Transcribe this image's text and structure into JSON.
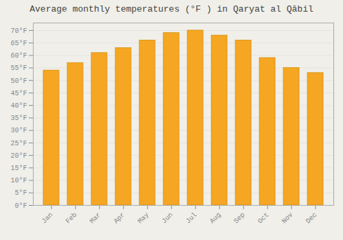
{
  "chart_data": {
    "type": "bar",
    "title": "Average monthly temperatures (°F ) in Qaryat al Qābil",
    "categories": [
      "Jan",
      "Feb",
      "Mar",
      "Apr",
      "May",
      "Jun",
      "Jul",
      "Aug",
      "Sep",
      "Oct",
      "Nov",
      "Dec"
    ],
    "values": [
      54,
      57,
      61,
      63,
      66,
      69,
      70,
      68,
      66,
      59,
      55,
      53
    ],
    "color": "#F5A623",
    "ylim": [
      0,
      73
    ],
    "yticks": [
      {
        "value": 0,
        "label": "0°F"
      },
      {
        "value": 5,
        "label": "5°F"
      },
      {
        "value": 10,
        "label": "10°F"
      },
      {
        "value": 15,
        "label": "15°F"
      },
      {
        "value": 20,
        "label": "20°F"
      },
      {
        "value": 25,
        "label": "25°F"
      },
      {
        "value": 30,
        "label": "30°F"
      },
      {
        "value": 35,
        "label": "35°F"
      },
      {
        "value": 40,
        "label": "40°F"
      },
      {
        "value": 45,
        "label": "45°F"
      },
      {
        "value": 50,
        "label": "50°F"
      },
      {
        "value": 55,
        "label": "55°F"
      },
      {
        "value": 60,
        "label": "60°F"
      },
      {
        "value": 65,
        "label": "65°F"
      },
      {
        "value": 70,
        "label": "70°F"
      }
    ],
    "grid": true
  }
}
